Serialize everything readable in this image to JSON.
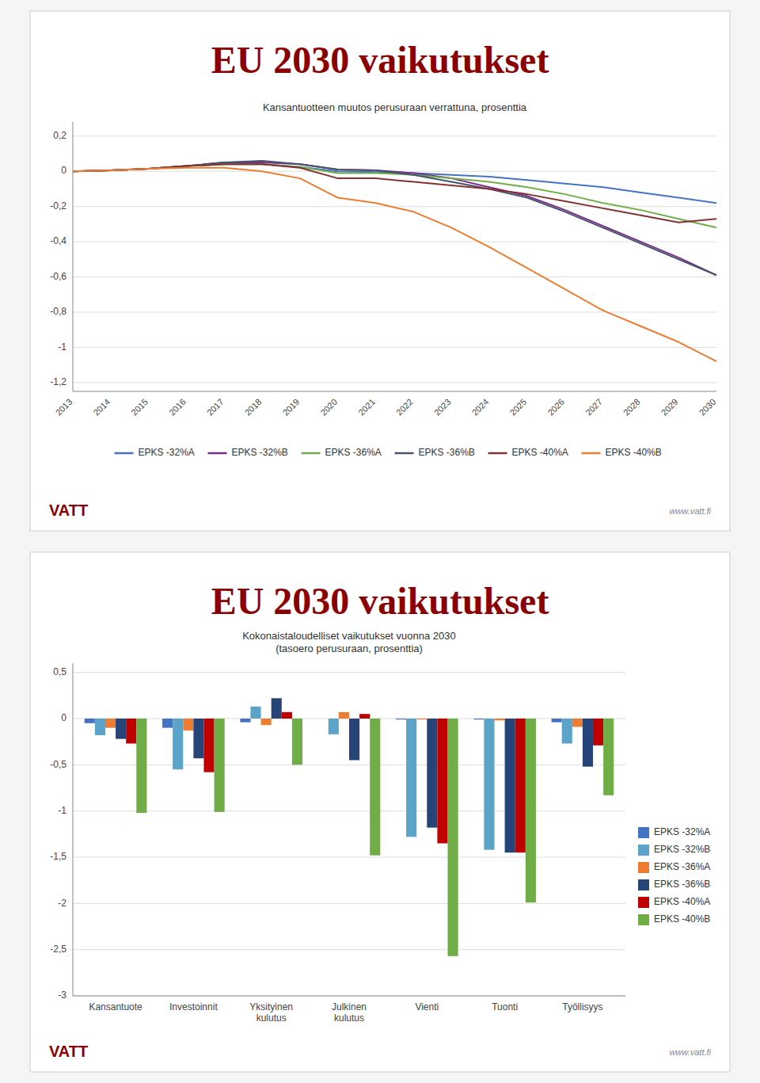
{
  "chart_data": [
    {
      "type": "line",
      "title": "EU 2030 vaikutukset",
      "subtitle": "Kansantuotteen muutos perusuraan verrattuna, prosenttia",
      "annotations": [
        "VATT",
        "www.vatt.fi"
      ],
      "x": [
        2013,
        2014,
        2015,
        2016,
        2017,
        2018,
        2019,
        2020,
        2021,
        2022,
        2023,
        2024,
        2025,
        2026,
        2027,
        2028,
        2029,
        2030
      ],
      "xlim": [
        2013,
        2030
      ],
      "xticks": [
        2013,
        2014,
        2015,
        2016,
        2017,
        2018,
        2019,
        2020,
        2021,
        2022,
        2023,
        2024,
        2025,
        2026,
        2027,
        2028,
        2029,
        2030
      ],
      "ylim": [
        -1.25,
        0.28
      ],
      "yticks": [
        {
          "value": 0.2,
          "label": "0,2"
        },
        0,
        {
          "value": -0.2,
          "label": "-0,2"
        },
        {
          "value": -0.4,
          "label": "-0,4"
        },
        {
          "value": -0.6,
          "label": "-0,6"
        },
        {
          "value": -0.8,
          "label": "-0,8"
        },
        -1,
        {
          "value": -1.2,
          "label": "-1,2"
        }
      ],
      "grid": true,
      "legend": "bottom",
      "series": [
        {
          "name": "EPKS -32%A",
          "color": "#4472C4",
          "values": [
            0.0,
            0.005,
            0.015,
            0.03,
            0.04,
            0.04,
            0.025,
            0.0,
            -0.005,
            -0.01,
            -0.02,
            -0.03,
            -0.05,
            -0.07,
            -0.09,
            -0.12,
            -0.15,
            -0.18
          ]
        },
        {
          "name": "EPKS -32%B",
          "color": "#7B2D8B",
          "values": [
            0.0,
            0.005,
            0.015,
            0.03,
            0.05,
            0.05,
            0.04,
            0.01,
            0.005,
            -0.01,
            -0.04,
            -0.09,
            -0.14,
            -0.22,
            -0.31,
            -0.4,
            -0.49,
            -0.59
          ]
        },
        {
          "name": "EPKS -36%A",
          "color": "#70AD47",
          "values": [
            0.0,
            0.005,
            0.015,
            0.03,
            0.04,
            0.04,
            0.025,
            -0.01,
            -0.01,
            -0.02,
            -0.04,
            -0.06,
            -0.09,
            -0.13,
            -0.18,
            -0.22,
            -0.27,
            -0.32
          ]
        },
        {
          "name": "EPKS -36%B",
          "color": "#44546A",
          "values": [
            0.0,
            0.005,
            0.015,
            0.03,
            0.05,
            0.06,
            0.04,
            0.01,
            0.005,
            -0.02,
            -0.06,
            -0.1,
            -0.15,
            -0.23,
            -0.32,
            -0.41,
            -0.5,
            -0.59
          ]
        },
        {
          "name": "EPKS -40%A",
          "color": "#833232",
          "values": [
            0.0,
            0.005,
            0.015,
            0.03,
            0.04,
            0.04,
            0.02,
            -0.04,
            -0.04,
            -0.06,
            -0.08,
            -0.1,
            -0.13,
            -0.17,
            -0.21,
            -0.25,
            -0.29,
            -0.27
          ]
        },
        {
          "name": "EPKS -40%B",
          "color": "#ED7D31",
          "values": [
            0.0,
            0.005,
            0.015,
            0.02,
            0.02,
            0.0,
            -0.04,
            -0.15,
            -0.18,
            -0.23,
            -0.32,
            -0.43,
            -0.55,
            -0.67,
            -0.79,
            -0.88,
            -0.97,
            -1.08
          ]
        }
      ]
    },
    {
      "type": "bar",
      "title": "EU 2030 vaikutukset",
      "subtitle": "Kokonaistaloudelliset vaikutukset vuonna 2030\n(tasoero perusuraan, prosenttia)",
      "annotations": [
        "VATT",
        "www.vatt.fi"
      ],
      "categories": [
        "Kansantuote",
        "Investoinnit",
        "Yksityinen kulutus",
        "Julkinen kulutus",
        "Vienti",
        "Tuonti",
        "Työllisyys"
      ],
      "ylim": [
        -3.0,
        0.6
      ],
      "yticks": [
        {
          "value": 0.5,
          "label": "0,5"
        },
        0,
        {
          "value": -0.5,
          "label": "-0,5"
        },
        -1,
        {
          "value": -1.5,
          "label": "-1,5"
        },
        -2,
        {
          "value": -2.5,
          "label": "-2,5"
        },
        -3
      ],
      "grid": true,
      "legend": "right",
      "series": [
        {
          "name": "EPKS -32%A",
          "color": "#4472C4",
          "values": [
            -0.05,
            -0.1,
            -0.04,
            0.0,
            -0.01,
            -0.01,
            -0.04
          ]
        },
        {
          "name": "EPKS -32%B",
          "color": "#5BA3C9",
          "values": [
            -0.18,
            -0.55,
            0.13,
            -0.17,
            -1.28,
            -1.42,
            -0.27
          ]
        },
        {
          "name": "EPKS -36%A",
          "color": "#ED7D31",
          "values": [
            -0.1,
            -0.13,
            -0.07,
            0.07,
            -0.01,
            -0.02,
            -0.09
          ]
        },
        {
          "name": "EPKS -36%B",
          "color": "#264478",
          "values": [
            -0.22,
            -0.43,
            0.22,
            -0.45,
            -1.18,
            -1.45,
            -0.52
          ]
        },
        {
          "name": "EPKS -40%A",
          "color": "#C00000",
          "values": [
            -0.27,
            -0.58,
            0.07,
            0.05,
            -1.35,
            -1.45,
            -0.29
          ]
        },
        {
          "name": "EPKS -40%B",
          "color": "#70AD47",
          "values": [
            -1.02,
            -1.01,
            -0.5,
            -1.48,
            -2.57,
            -1.99,
            -0.83
          ]
        }
      ]
    }
  ]
}
